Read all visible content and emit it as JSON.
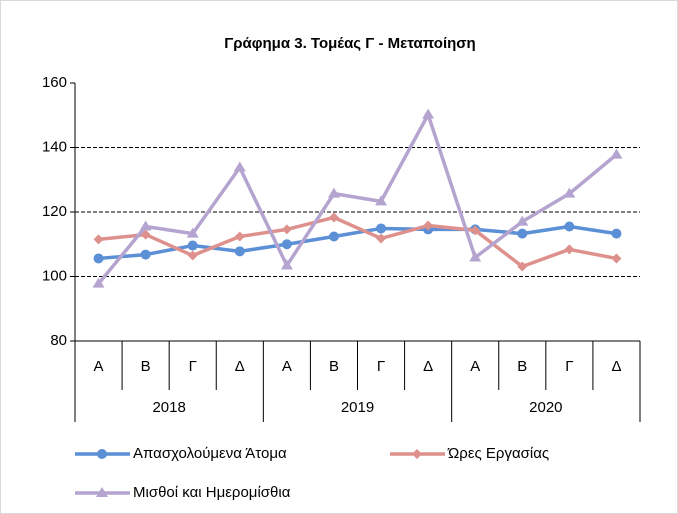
{
  "chart_data": {
    "type": "line",
    "title": "Γράφημα 3. Τομέας Γ - Μεταποίηση",
    "categories": [
      "Α",
      "Β",
      "Γ",
      "Δ",
      "Α",
      "Β",
      "Γ",
      "Δ",
      "Α",
      "Β",
      "Γ",
      "Δ"
    ],
    "groups": [
      "2018",
      "2019",
      "2020"
    ],
    "series": [
      {
        "name": "Απασχολούμενα Άτομα",
        "color": "#5b8fd6",
        "marker": "circle",
        "values": [
          105.6,
          106.8,
          109.6,
          107.8,
          110.0,
          112.4,
          114.9,
          114.6,
          114.6,
          113.3,
          115.5,
          113.3
        ]
      },
      {
        "name": "Ώρες Εργασίας",
        "color": "#de918c",
        "marker": "diamond",
        "values": [
          111.5,
          113.0,
          106.5,
          112.4,
          114.6,
          118.3,
          111.8,
          115.8,
          114.3,
          103.1,
          108.4,
          105.6
        ]
      },
      {
        "name": "Μισθοί και Ημερομίσθια",
        "color": "#b4a4cf",
        "marker": "triangle",
        "values": [
          97.8,
          115.5,
          113.3,
          133.8,
          103.4,
          125.7,
          123.3,
          150.2,
          105.9,
          117.0,
          125.7,
          137.8
        ]
      }
    ],
    "ylim": [
      80,
      160
    ],
    "yticks": [
      80,
      100,
      120,
      140,
      160
    ],
    "grid": true
  }
}
